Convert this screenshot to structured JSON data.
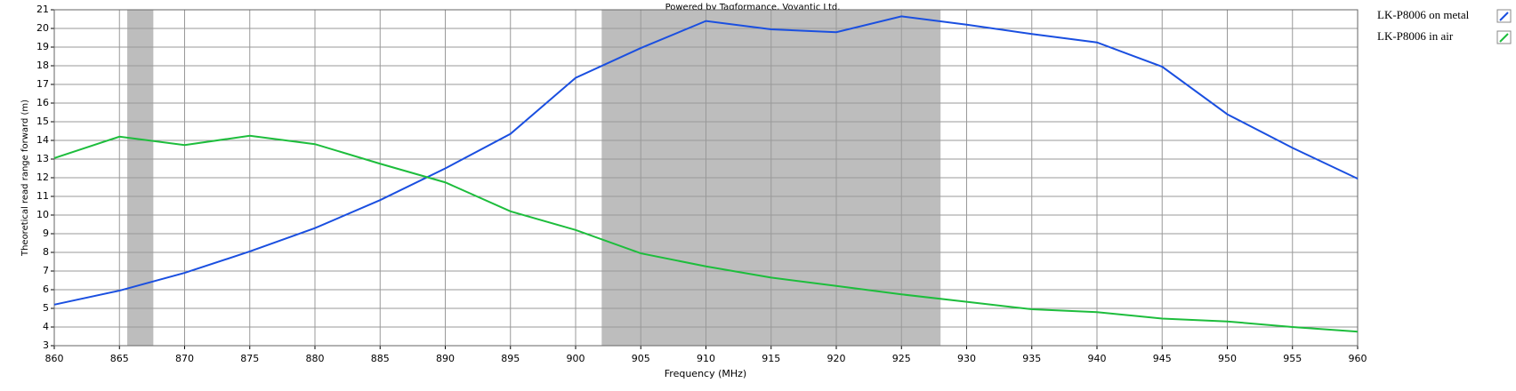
{
  "chart_data": {
    "type": "line",
    "title": "Powered by Tagformance, Voyantic Ltd.",
    "xlabel": "Frequency (MHz)",
    "ylabel": "Theoretical read range forward (m)",
    "x": [
      860,
      865,
      870,
      875,
      880,
      885,
      890,
      895,
      900,
      905,
      910,
      915,
      920,
      925,
      930,
      935,
      940,
      945,
      950,
      955,
      960
    ],
    "series": [
      {
        "name": "LK-P8006 on metal",
        "color": "#1a4fe0",
        "values": [
          5.2,
          5.95,
          6.9,
          8.05,
          9.3,
          10.8,
          12.5,
          14.35,
          17.35,
          18.95,
          20.4,
          19.95,
          19.8,
          20.65,
          20.2,
          19.7,
          19.25,
          17.95,
          15.4,
          13.6,
          11.95
        ]
      },
      {
        "name": "LK-P8006 in air",
        "color": "#1dbd3c",
        "values": [
          13.05,
          14.2,
          13.75,
          14.25,
          13.8,
          12.75,
          11.75,
          10.2,
          9.2,
          7.95,
          7.25,
          6.65,
          6.2,
          5.75,
          5.35,
          4.95,
          4.8,
          4.45,
          4.3,
          4.0,
          3.75
        ]
      }
    ],
    "bands": [
      [
        865.6,
        867.6
      ],
      [
        902,
        928
      ]
    ],
    "band_color": "#bdbdbd",
    "xlim": [
      860,
      960
    ],
    "ylim": [
      3,
      21
    ],
    "xticks": [
      860,
      865,
      870,
      875,
      880,
      885,
      890,
      895,
      900,
      905,
      910,
      915,
      920,
      925,
      930,
      935,
      940,
      945,
      950,
      955,
      960
    ],
    "yticks": [
      3,
      4,
      5,
      6,
      7,
      8,
      9,
      10,
      11,
      12,
      13,
      14,
      15,
      16,
      17,
      18,
      19,
      20,
      21
    ],
    "grid": true,
    "legend": "right"
  }
}
